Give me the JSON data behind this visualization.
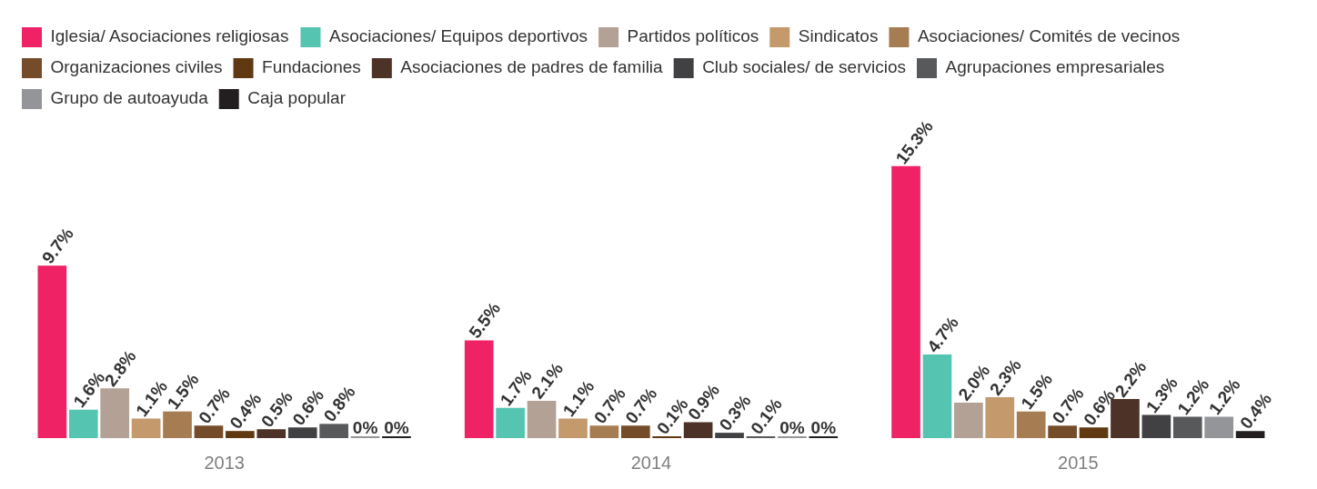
{
  "chart_data": {
    "type": "bar",
    "categories": [
      "2013",
      "2014",
      "2015"
    ],
    "legend": "top left",
    "grid": false,
    "tick_labels": "x",
    "series": [
      {
        "name": "Iglesia/ Asociaciones religiosas",
        "color": "#ee2264",
        "values": [
          9.7,
          5.5,
          15.3
        ],
        "value_labels": [
          "9.7%",
          "5.5%",
          "15.3%"
        ]
      },
      {
        "name": "Asociaciones/ Equipos deportivos",
        "color": "#55c4b0",
        "values": [
          1.6,
          1.7,
          4.7
        ],
        "value_labels": [
          "1.6%",
          "1.7%",
          "4.7%"
        ]
      },
      {
        "name": "Partidos políticos",
        "color": "#b3a195",
        "values": [
          2.8,
          2.1,
          2.0
        ],
        "value_labels": [
          "2.8%",
          "2.1%",
          "2.0%"
        ]
      },
      {
        "name": "Sindicatos",
        "color": "#c49a6c",
        "values": [
          1.1,
          1.1,
          2.3
        ],
        "value_labels": [
          "1.1%",
          "1.1%",
          "2.3%"
        ]
      },
      {
        "name": "Asociaciones/ Comités de vecinos",
        "color": "#a67c52",
        "values": [
          1.5,
          0.7,
          1.5
        ],
        "value_labels": [
          "1.5%",
          "0.7%",
          "1.5%"
        ]
      },
      {
        "name": "Organizaciones civiles",
        "color": "#754c29",
        "values": [
          0.7,
          0.7,
          0.7
        ],
        "value_labels": [
          "0.7%",
          "0.7%",
          "0.7%"
        ]
      },
      {
        "name": "Fundaciones",
        "color": "#603913",
        "values": [
          0.4,
          0.1,
          0.6
        ],
        "value_labels": [
          "0.4%",
          "0.1%",
          "0.6%"
        ]
      },
      {
        "name": "Asociaciones de padres de familia",
        "color": "#4d3327",
        "values": [
          0.5,
          0.9,
          2.2
        ],
        "value_labels": [
          "0.5%",
          "0.9%",
          "2.2%"
        ]
      },
      {
        "name": "Club sociales/ de servicios",
        "color": "#414042",
        "values": [
          0.6,
          0.3,
          1.3
        ],
        "value_labels": [
          "0.6%",
          "0.3%",
          "1.3%"
        ]
      },
      {
        "name": "Agrupaciones empresariales",
        "color": "#58595b",
        "values": [
          0.8,
          0.1,
          1.2
        ],
        "value_labels": [
          "0.8%",
          "0.1%",
          "1.2%"
        ]
      },
      {
        "name": "Grupo de autoayuda",
        "color": "#939598",
        "values": [
          0,
          0,
          1.2
        ],
        "value_labels": [
          "0%",
          "0%",
          "1.2%"
        ]
      },
      {
        "name": "Caja popular",
        "color": "#231f20",
        "values": [
          0,
          0,
          0.4
        ],
        "value_labels": [
          "0%",
          "0%",
          "0.4%"
        ]
      }
    ]
  }
}
